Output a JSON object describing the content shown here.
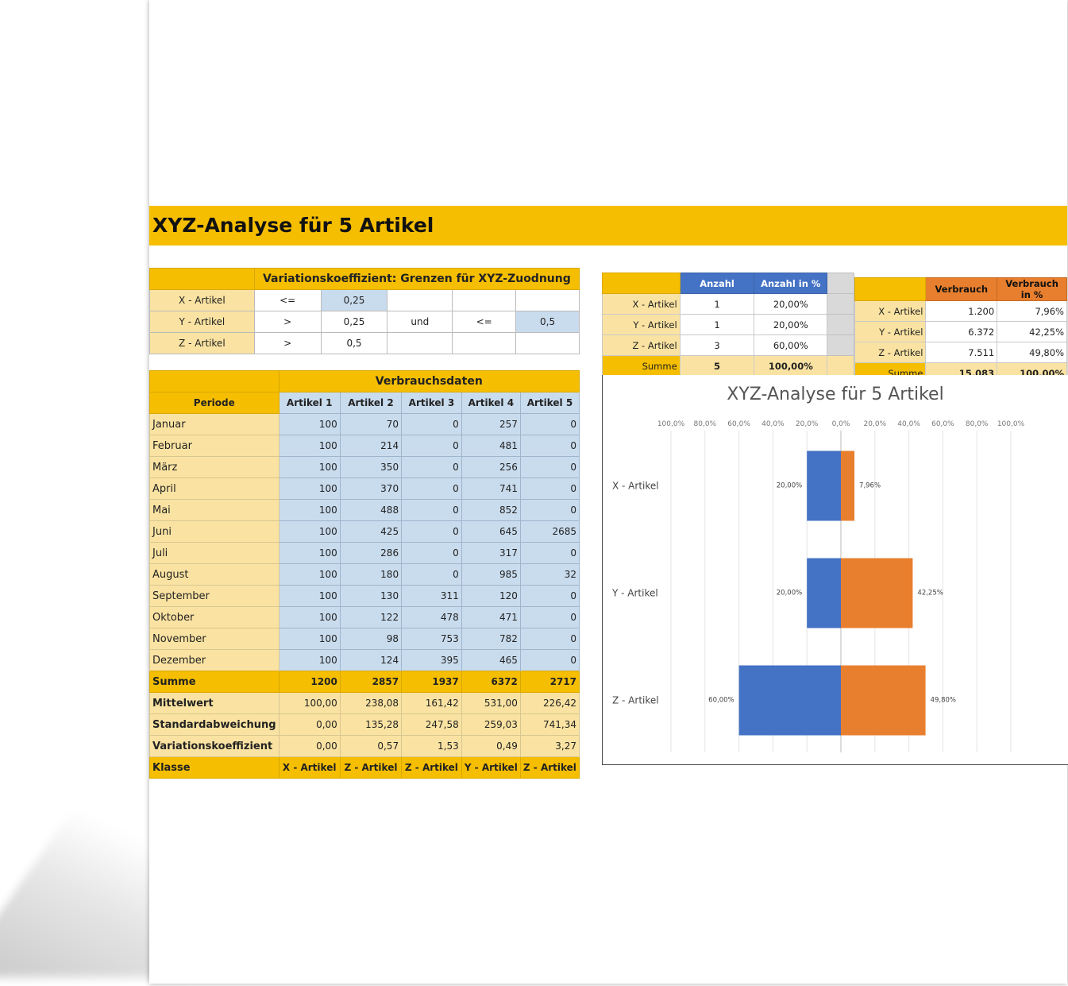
{
  "title": "XYZ-Analyse für 5 Artikel",
  "variation": {
    "header": "Variationskoeffizient: Grenzen für XYZ-Zuodnung",
    "rows": [
      {
        "label": "X - Artikel",
        "op1": "<=",
        "v1": "0,25",
        "und": "",
        "op2": "",
        "v2": ""
      },
      {
        "label": "Y - Artikel",
        "op1": ">",
        "v1": "0,25",
        "und": "und",
        "op2": "<=",
        "v2": "0,5"
      },
      {
        "label": "Z - Artikel",
        "op1": ">",
        "v1": "0,5",
        "und": "",
        "op2": "",
        "v2": ""
      }
    ]
  },
  "data": {
    "title": "Verbrauchsdaten",
    "period_label": "Periode",
    "columns": [
      "Artikel 1",
      "Artikel 2",
      "Artikel 3",
      "Artikel 4",
      "Artikel 5"
    ],
    "rows": [
      {
        "month": "Januar",
        "v": [
          "100",
          "70",
          "0",
          "257",
          "0"
        ]
      },
      {
        "month": "Februar",
        "v": [
          "100",
          "214",
          "0",
          "481",
          "0"
        ]
      },
      {
        "month": "März",
        "v": [
          "100",
          "350",
          "0",
          "256",
          "0"
        ]
      },
      {
        "month": "April",
        "v": [
          "100",
          "370",
          "0",
          "741",
          "0"
        ]
      },
      {
        "month": "Mai",
        "v": [
          "100",
          "488",
          "0",
          "852",
          "0"
        ]
      },
      {
        "month": "Juni",
        "v": [
          "100",
          "425",
          "0",
          "645",
          "2685"
        ]
      },
      {
        "month": "Juli",
        "v": [
          "100",
          "286",
          "0",
          "317",
          "0"
        ]
      },
      {
        "month": "August",
        "v": [
          "100",
          "180",
          "0",
          "985",
          "32"
        ]
      },
      {
        "month": "September",
        "v": [
          "100",
          "130",
          "311",
          "120",
          "0"
        ]
      },
      {
        "month": "Oktober",
        "v": [
          "100",
          "122",
          "478",
          "471",
          "0"
        ]
      },
      {
        "month": "November",
        "v": [
          "100",
          "98",
          "753",
          "782",
          "0"
        ]
      },
      {
        "month": "Dezember",
        "v": [
          "100",
          "124",
          "395",
          "465",
          "0"
        ]
      }
    ],
    "sum": {
      "label": "Summe",
      "v": [
        "1200",
        "2857",
        "1937",
        "6372",
        "2717"
      ]
    },
    "stats": [
      {
        "label": "Mittelwert",
        "v": [
          "100,00",
          "238,08",
          "161,42",
          "531,00",
          "226,42"
        ]
      },
      {
        "label": "Standardabweichung",
        "v": [
          "0,00",
          "135,28",
          "247,58",
          "259,03",
          "741,34"
        ]
      },
      {
        "label": "Variationskoeffizient",
        "v": [
          "0,00",
          "0,57",
          "1,53",
          "0,49",
          "3,27"
        ]
      }
    ],
    "klasse": {
      "label": "Klasse",
      "v": [
        "X - Artikel",
        "Z - Artikel",
        "Z - Artikel",
        "Y - Artikel",
        "Z - Artikel"
      ]
    }
  },
  "summary_count": {
    "headers": [
      "Anzahl",
      "Anzahl in %"
    ],
    "rows": [
      {
        "label": "X - Artikel",
        "n": "1",
        "p": "20,00%"
      },
      {
        "label": "Y - Artikel",
        "n": "1",
        "p": "20,00%"
      },
      {
        "label": "Z - Artikel",
        "n": "3",
        "p": "60,00%"
      }
    ],
    "sum": {
      "label": "Summe",
      "n": "5",
      "p": "100,00%"
    }
  },
  "summary_consumption": {
    "headers": [
      "Verbrauch",
      "Verbrauch in %"
    ],
    "rows": [
      {
        "label": "X - Artikel",
        "v": "1.200",
        "p": "7,96%"
      },
      {
        "label": "Y - Artikel",
        "v": "6.372",
        "p": "42,25%"
      },
      {
        "label": "Z - Artikel",
        "v": "7.511",
        "p": "49,80%"
      }
    ],
    "sum": {
      "label": "Summe",
      "v": "15.083",
      "p": "100,00%"
    }
  },
  "chart_data": {
    "type": "bar",
    "orientation": "horizontal-butterfly",
    "title": "XYZ-Analyse für 5 Artikel",
    "categories": [
      "X - Artikel",
      "Y - Artikel",
      "Z - Artikel"
    ],
    "series": [
      {
        "color": "#4472c4",
        "values": [
          20.0,
          20.0,
          60.0
        ],
        "labels": [
          "20,00%",
          "20,00%",
          "60,00%"
        ],
        "side": "left"
      },
      {
        "color": "#e87f2e",
        "values": [
          7.96,
          42.25,
          49.8
        ],
        "labels": [
          "7,96%",
          "42,25%",
          "49,80%"
        ],
        "side": "right"
      }
    ],
    "axis_ticks": [
      "100,0%",
      "80,0%",
      "60,0%",
      "40,0%",
      "20,0%",
      "0,0%",
      "20,0%",
      "40,0%",
      "60,0%",
      "80,0%",
      "100,0%"
    ],
    "xlim": [
      -100,
      100
    ],
    "grid": true,
    "legend": "none"
  }
}
